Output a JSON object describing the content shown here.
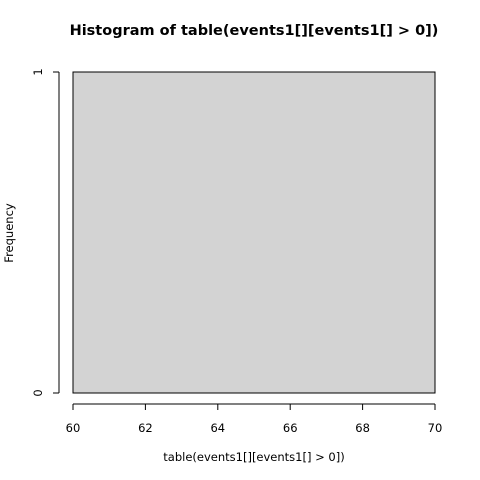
{
  "chart_data": {
    "type": "bar",
    "title": "Histogram of table(events1[][events1[] > 0])",
    "xlabel": "table(events1[][events1[] > 0])",
    "ylabel": "Frequency",
    "xlim": [
      60,
      70
    ],
    "ylim": [
      0,
      1
    ],
    "x_ticks": [
      60,
      62,
      64,
      66,
      68,
      70
    ],
    "y_ticks": [
      0,
      1
    ],
    "bins": [
      {
        "start": 60,
        "end": 70,
        "frequency": 1
      }
    ],
    "bar_fill": "#d3d3d3",
    "bar_stroke": "#000000",
    "grid": false
  }
}
